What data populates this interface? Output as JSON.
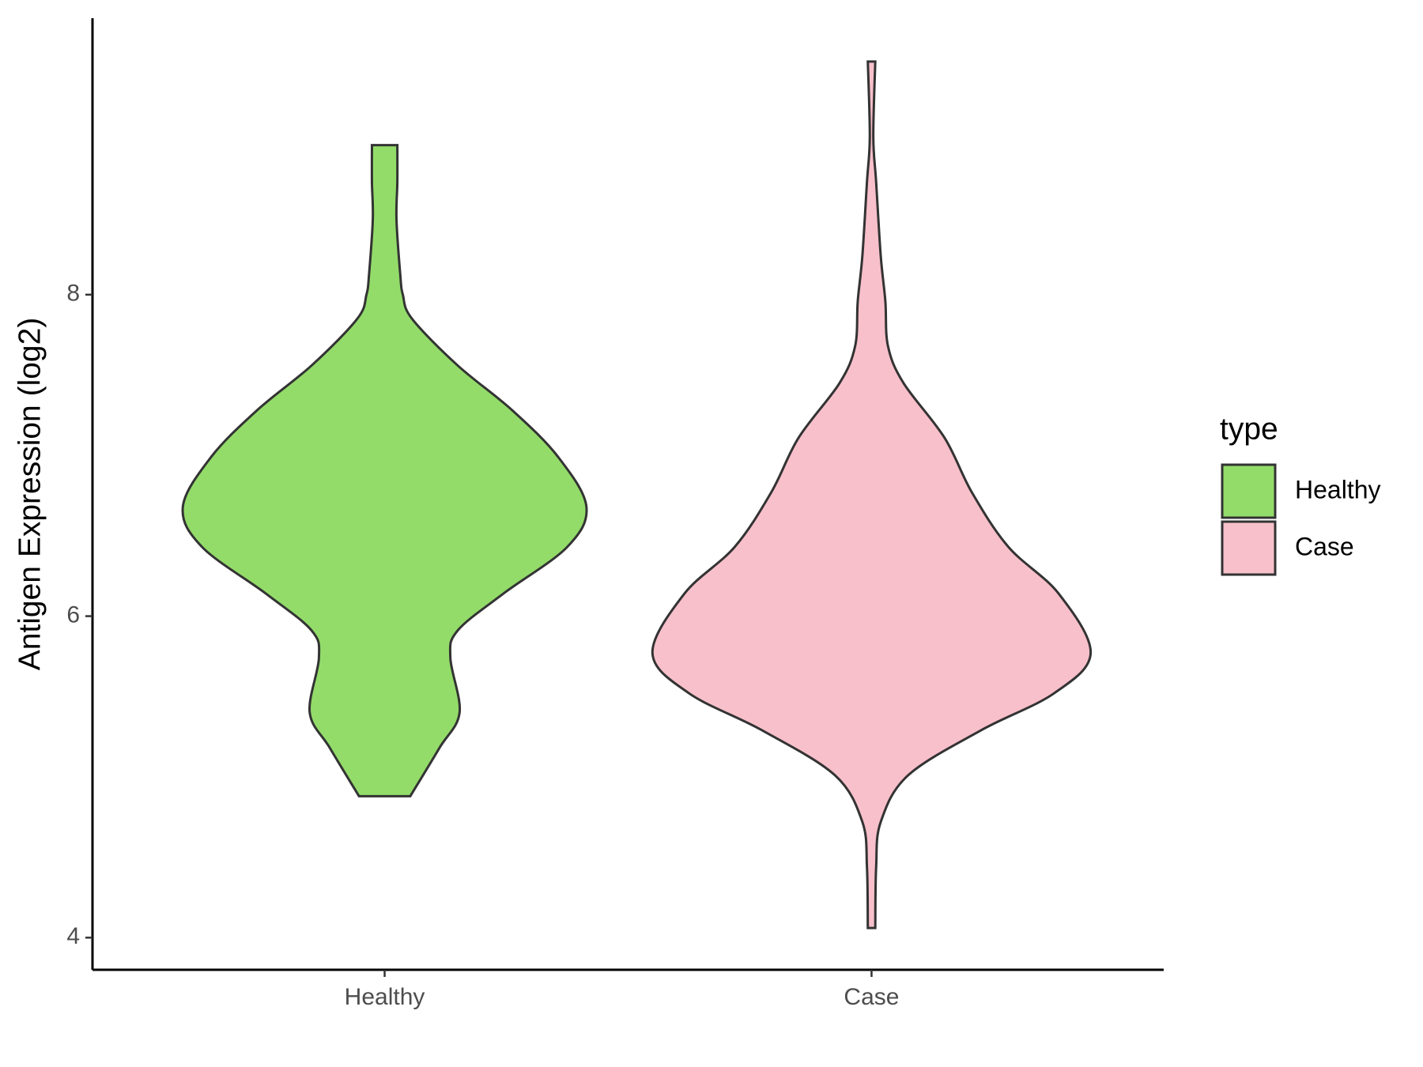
{
  "chart_data": {
    "type": "violin",
    "y_label": "Antigen Expression (log2)",
    "categories": [
      "Healthy",
      "Case"
    ],
    "legend_title": "type",
    "series": [
      {
        "name": "Healthy",
        "color": "#93dc6a",
        "y": [
          8.93,
          8.7,
          8.47,
          8.13,
          8.0,
          7.85,
          7.56,
          7.28,
          6.99,
          6.68,
          6.43,
          6.14,
          5.91,
          5.74,
          5.4,
          5.18,
          4.88
        ],
        "density": [
          0.058,
          0.058,
          0.054,
          0.071,
          0.083,
          0.125,
          0.333,
          0.583,
          0.792,
          0.921,
          0.833,
          0.542,
          0.333,
          0.3,
          0.342,
          0.25,
          0.117
        ]
      },
      {
        "name": "Case",
        "color": "#f8c0cb",
        "y": [
          9.45,
          8.98,
          8.7,
          8.24,
          7.96,
          7.68,
          7.45,
          7.11,
          6.77,
          6.43,
          6.14,
          5.77,
          5.52,
          5.29,
          5.01,
          4.72,
          4.44,
          4.06
        ],
        "density": [
          0.017,
          0.008,
          0.021,
          0.042,
          0.063,
          0.075,
          0.146,
          0.333,
          0.458,
          0.625,
          0.854,
          1.0,
          0.833,
          0.5,
          0.167,
          0.042,
          0.021,
          0.017
        ]
      }
    ],
    "ylim": [
      3.8,
      9.72
    ],
    "yticks": [
      4,
      6,
      8
    ],
    "xlim": [
      0.4,
      2.6
    ],
    "legend_position": "right",
    "grid": false
  }
}
